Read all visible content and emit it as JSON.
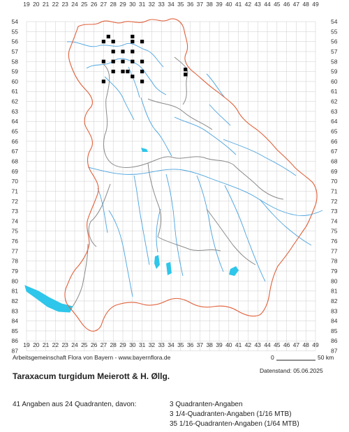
{
  "top_x_labels": [
    "19",
    "20",
    "21",
    "22",
    "23",
    "24",
    "25",
    "26",
    "27",
    "28",
    "29",
    "30",
    "31",
    "32",
    "33",
    "34",
    "35",
    "36",
    "37",
    "38",
    "39",
    "40",
    "41",
    "42",
    "43",
    "44",
    "45",
    "46",
    "47",
    "48",
    "49"
  ],
  "bottom_x_labels": [
    "19",
    "20",
    "21",
    "22",
    "23",
    "24",
    "25",
    "26",
    "27",
    "28",
    "29",
    "30",
    "31",
    "32",
    "33",
    "34",
    "35",
    "36",
    "37",
    "38",
    "39",
    "40",
    "41",
    "42",
    "43",
    "44",
    "45",
    "46",
    "47",
    "48",
    "49"
  ],
  "y_labels": [
    "54",
    "55",
    "56",
    "57",
    "58",
    "59",
    "60",
    "61",
    "62",
    "63",
    "64",
    "65",
    "66",
    "67",
    "68",
    "69",
    "70",
    "71",
    "72",
    "73",
    "74",
    "75",
    "76",
    "77",
    "78",
    "79",
    "80",
    "81",
    "82",
    "83",
    "84",
    "85",
    "86",
    "87"
  ],
  "occurrences": [
    {
      "x": 27,
      "y": 56
    },
    {
      "x": 28,
      "y": 56
    },
    {
      "x": 30,
      "y": 56
    },
    {
      "x": 31,
      "y": 56
    },
    {
      "x": 27.5,
      "y": 55.5
    },
    {
      "x": 30,
      "y": 55.5
    },
    {
      "x": 28,
      "y": 57
    },
    {
      "x": 29,
      "y": 57
    },
    {
      "x": 30,
      "y": 57
    },
    {
      "x": 27,
      "y": 58
    },
    {
      "x": 28,
      "y": 58
    },
    {
      "x": 29,
      "y": 58
    },
    {
      "x": 30,
      "y": 58
    },
    {
      "x": 31,
      "y": 58
    },
    {
      "x": 28,
      "y": 59
    },
    {
      "x": 29,
      "y": 59
    },
    {
      "x": 29.5,
      "y": 59
    },
    {
      "x": 31,
      "y": 59
    },
    {
      "x": 30,
      "y": 59.5
    },
    {
      "x": 35.5,
      "y": 58.8
    },
    {
      "x": 35.5,
      "y": 59.3
    },
    {
      "x": 27,
      "y": 60
    },
    {
      "x": 31,
      "y": 60
    }
  ],
  "colors": {
    "border_state": "#e0603a",
    "border_region": "#8a8a8a",
    "rivers": "#4aa3df",
    "lakes": "#2ec6ea",
    "grid": "#cccccc",
    "points": "#000000"
  },
  "credit": "Arbeitsgemeinschaft Flora von Bayern - www.bayernflora.de",
  "scale_start": "0",
  "scale_end": "50 km",
  "date": "Datenstand: 05.06.2025",
  "species_title": "Taraxacum turgidum Meierott & H. Øllg.",
  "summary": "41 Angaben aus 24 Quadranten, davon:",
  "stats": [
    "3 Quadranten-Angaben",
    "3 1/4-Quadranten-Angaben (1/16 MTB)",
    "35 1/16-Quadranten-Angaben (1/64 MTB)"
  ]
}
